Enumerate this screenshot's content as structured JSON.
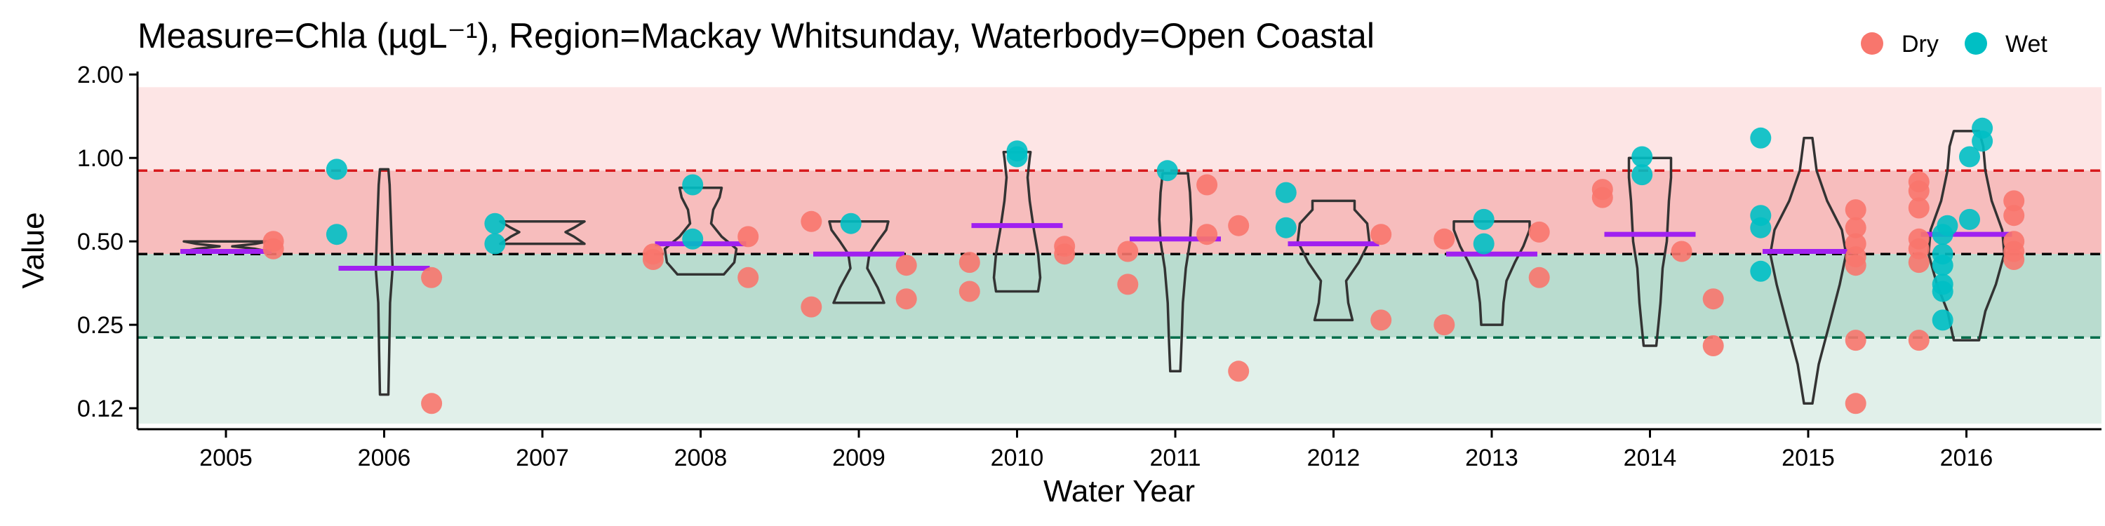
{
  "chart_data": {
    "type": "scatter",
    "title": "Measure=Chla (µgL⁻¹), Region=Mackay Whitsunday, Waterbody=Open Coastal",
    "xlabel": "Water Year",
    "ylabel": "Value",
    "y_scale": "log2",
    "ylim": [
      0.105,
      2.05
    ],
    "y_ticks": [
      {
        "value": 0.125,
        "label": "0.12"
      },
      {
        "value": 0.25,
        "label": "0.25"
      },
      {
        "value": 0.5,
        "label": "0.50"
      },
      {
        "value": 1.0,
        "label": "1.00"
      },
      {
        "value": 2.0,
        "label": "2.00"
      }
    ],
    "categories": [
      "2005",
      "2006",
      "2007",
      "2008",
      "2009",
      "2010",
      "2011",
      "2012",
      "2013",
      "2014",
      "2015",
      "2016"
    ],
    "grid": false,
    "legend_placement": "top-right",
    "legend": [
      {
        "name": "Dry",
        "color": "#f8766d"
      },
      {
        "name": "Wet",
        "color": "#00bfc4"
      }
    ],
    "reference_lines": [
      {
        "value": 0.9,
        "color": "#d7191c"
      },
      {
        "value": 0.45,
        "color": "#000000"
      },
      {
        "value": 0.225,
        "color": "#006d4b"
      }
    ],
    "bands": [
      {
        "from": 0.9,
        "to": 1.8,
        "color": "#fde5e5"
      },
      {
        "from": 0.45,
        "to": 0.9,
        "color": "#f7bdbd"
      },
      {
        "from": 0.225,
        "to": 0.45,
        "color": "#b9dccf"
      },
      {
        "from": 0.11,
        "to": 0.225,
        "color": "#e1f0ea"
      }
    ],
    "medians": [
      {
        "category": "2005",
        "value": 0.46
      },
      {
        "category": "2006",
        "value": 0.4
      },
      {
        "category": "2008",
        "value": 0.49
      },
      {
        "category": "2009",
        "value": 0.45
      },
      {
        "category": "2010",
        "value": 0.57
      },
      {
        "category": "2011",
        "value": 0.51
      },
      {
        "category": "2012",
        "value": 0.49
      },
      {
        "category": "2013",
        "value": 0.45
      },
      {
        "category": "2014",
        "value": 0.53
      },
      {
        "category": "2015",
        "value": 0.46
      },
      {
        "category": "2016",
        "value": 0.53
      }
    ],
    "violins": [
      {
        "category": "2005",
        "min": 0.46,
        "max": 0.5,
        "profile": [
          [
            0.46,
            1.0
          ],
          [
            0.47,
            0.7
          ],
          [
            0.48,
            0.15
          ],
          [
            0.49,
            0.7
          ],
          [
            0.5,
            1.0
          ]
        ]
      },
      {
        "category": "2006",
        "min": 0.14,
        "max": 0.91,
        "profile": [
          [
            0.14,
            0.1
          ],
          [
            0.2,
            0.12
          ],
          [
            0.3,
            0.14
          ],
          [
            0.4,
            0.2
          ],
          [
            0.6,
            0.16
          ],
          [
            0.8,
            0.13
          ],
          [
            0.91,
            0.1
          ]
        ]
      },
      {
        "category": "2007",
        "min": 0.49,
        "max": 0.59,
        "profile": [
          [
            0.49,
            1.0
          ],
          [
            0.52,
            0.75
          ],
          [
            0.54,
            0.55
          ],
          [
            0.56,
            0.75
          ],
          [
            0.59,
            1.0
          ]
        ]
      },
      {
        "category": "2008",
        "min": 0.38,
        "max": 0.78,
        "profile": [
          [
            0.38,
            0.55
          ],
          [
            0.42,
            0.8
          ],
          [
            0.47,
            0.85
          ],
          [
            0.52,
            0.5
          ],
          [
            0.58,
            0.25
          ],
          [
            0.65,
            0.3
          ],
          [
            0.72,
            0.45
          ],
          [
            0.78,
            0.5
          ]
        ]
      },
      {
        "category": "2009",
        "min": 0.3,
        "max": 0.59,
        "profile": [
          [
            0.3,
            0.6
          ],
          [
            0.34,
            0.45
          ],
          [
            0.4,
            0.2
          ],
          [
            0.45,
            0.25
          ],
          [
            0.5,
            0.45
          ],
          [
            0.55,
            0.65
          ],
          [
            0.59,
            0.7
          ]
        ]
      },
      {
        "category": "2010",
        "min": 0.33,
        "max": 1.05,
        "profile": [
          [
            0.33,
            0.5
          ],
          [
            0.37,
            0.55
          ],
          [
            0.45,
            0.5
          ],
          [
            0.55,
            0.4
          ],
          [
            0.7,
            0.3
          ],
          [
            0.85,
            0.25
          ],
          [
            1.0,
            0.3
          ],
          [
            1.05,
            0.32
          ]
        ]
      },
      {
        "category": "2011",
        "min": 0.17,
        "max": 0.88,
        "profile": [
          [
            0.17,
            0.12
          ],
          [
            0.22,
            0.15
          ],
          [
            0.3,
            0.18
          ],
          [
            0.4,
            0.25
          ],
          [
            0.5,
            0.35
          ],
          [
            0.6,
            0.38
          ],
          [
            0.75,
            0.35
          ],
          [
            0.88,
            0.3
          ]
        ]
      },
      {
        "category": "2012",
        "min": 0.26,
        "max": 0.7,
        "profile": [
          [
            0.26,
            0.45
          ],
          [
            0.3,
            0.35
          ],
          [
            0.36,
            0.3
          ],
          [
            0.42,
            0.6
          ],
          [
            0.5,
            0.85
          ],
          [
            0.58,
            0.8
          ],
          [
            0.65,
            0.5
          ],
          [
            0.7,
            0.5
          ]
        ]
      },
      {
        "category": "2013",
        "min": 0.25,
        "max": 0.59,
        "profile": [
          [
            0.25,
            0.25
          ],
          [
            0.3,
            0.28
          ],
          [
            0.36,
            0.35
          ],
          [
            0.42,
            0.55
          ],
          [
            0.48,
            0.75
          ],
          [
            0.55,
            0.9
          ],
          [
            0.59,
            0.9
          ]
        ]
      },
      {
        "category": "2014",
        "min": 0.21,
        "max": 1.0,
        "profile": [
          [
            0.21,
            0.15
          ],
          [
            0.25,
            0.2
          ],
          [
            0.3,
            0.25
          ],
          [
            0.4,
            0.3
          ],
          [
            0.5,
            0.4
          ],
          [
            0.7,
            0.45
          ],
          [
            0.85,
            0.5
          ],
          [
            1.0,
            0.5
          ]
        ]
      },
      {
        "category": "2015",
        "min": 0.13,
        "max": 1.18,
        "profile": [
          [
            0.13,
            0.1
          ],
          [
            0.18,
            0.25
          ],
          [
            0.25,
            0.5
          ],
          [
            0.35,
            0.75
          ],
          [
            0.45,
            0.9
          ],
          [
            0.55,
            0.8
          ],
          [
            0.7,
            0.45
          ],
          [
            0.9,
            0.2
          ],
          [
            1.18,
            0.1
          ]
        ]
      },
      {
        "category": "2016",
        "min": 0.22,
        "max": 1.25,
        "profile": [
          [
            0.22,
            0.3
          ],
          [
            0.28,
            0.45
          ],
          [
            0.35,
            0.7
          ],
          [
            0.45,
            0.9
          ],
          [
            0.55,
            0.85
          ],
          [
            0.7,
            0.6
          ],
          [
            0.9,
            0.45
          ],
          [
            1.1,
            0.4
          ],
          [
            1.25,
            0.3
          ]
        ]
      }
    ],
    "points": [
      {
        "category": "2005",
        "y": 0.5,
        "series": "Dry",
        "offset": 0.3
      },
      {
        "category": "2005",
        "y": 0.47,
        "series": "Dry",
        "offset": 0.3
      },
      {
        "category": "2006",
        "y": 0.91,
        "series": "Wet",
        "offset": -0.3
      },
      {
        "category": "2006",
        "y": 0.53,
        "series": "Wet",
        "offset": -0.3
      },
      {
        "category": "2006",
        "y": 0.37,
        "series": "Dry",
        "offset": 0.3
      },
      {
        "category": "2006",
        "y": 0.13,
        "series": "Dry",
        "offset": 0.3
      },
      {
        "category": "2007",
        "y": 0.58,
        "series": "Wet",
        "offset": -0.3
      },
      {
        "category": "2007",
        "y": 0.49,
        "series": "Wet",
        "offset": -0.3
      },
      {
        "category": "2008",
        "y": 0.43,
        "series": "Dry",
        "offset": -0.3
      },
      {
        "category": "2008",
        "y": 0.45,
        "series": "Dry",
        "offset": -0.3
      },
      {
        "category": "2008",
        "y": 0.8,
        "series": "Wet",
        "offset": -0.05
      },
      {
        "category": "2008",
        "y": 0.51,
        "series": "Wet",
        "offset": -0.05
      },
      {
        "category": "2008",
        "y": 0.52,
        "series": "Dry",
        "offset": 0.3
      },
      {
        "category": "2008",
        "y": 0.37,
        "series": "Dry",
        "offset": 0.3
      },
      {
        "category": "2009",
        "y": 0.59,
        "series": "Dry",
        "offset": -0.3
      },
      {
        "category": "2009",
        "y": 0.29,
        "series": "Dry",
        "offset": -0.3
      },
      {
        "category": "2009",
        "y": 0.58,
        "series": "Wet",
        "offset": -0.05
      },
      {
        "category": "2009",
        "y": 0.41,
        "series": "Dry",
        "offset": 0.3
      },
      {
        "category": "2009",
        "y": 0.31,
        "series": "Dry",
        "offset": 0.3
      },
      {
        "category": "2010",
        "y": 0.42,
        "series": "Dry",
        "offset": -0.3
      },
      {
        "category": "2010",
        "y": 0.33,
        "series": "Dry",
        "offset": -0.3
      },
      {
        "category": "2010",
        "y": 1.06,
        "series": "Wet",
        "offset": 0.0
      },
      {
        "category": "2010",
        "y": 1.01,
        "series": "Wet",
        "offset": 0.0
      },
      {
        "category": "2010",
        "y": 0.48,
        "series": "Dry",
        "offset": 0.3
      },
      {
        "category": "2010",
        "y": 0.45,
        "series": "Dry",
        "offset": 0.3
      },
      {
        "category": "2011",
        "y": 0.46,
        "series": "Dry",
        "offset": -0.3
      },
      {
        "category": "2011",
        "y": 0.35,
        "series": "Dry",
        "offset": -0.3
      },
      {
        "category": "2011",
        "y": 0.9,
        "series": "Wet",
        "offset": -0.05
      },
      {
        "category": "2011",
        "y": 0.8,
        "series": "Dry",
        "offset": 0.2
      },
      {
        "category": "2011",
        "y": 0.53,
        "series": "Dry",
        "offset": 0.2
      },
      {
        "category": "2011",
        "y": 0.57,
        "series": "Dry",
        "offset": 0.4
      },
      {
        "category": "2011",
        "y": 0.17,
        "series": "Dry",
        "offset": 0.4
      },
      {
        "category": "2012",
        "y": 0.75,
        "series": "Wet",
        "offset": -0.3
      },
      {
        "category": "2012",
        "y": 0.56,
        "series": "Wet",
        "offset": -0.3
      },
      {
        "category": "2012",
        "y": 0.53,
        "series": "Dry",
        "offset": 0.3
      },
      {
        "category": "2012",
        "y": 0.26,
        "series": "Dry",
        "offset": 0.3
      },
      {
        "category": "2013",
        "y": 0.51,
        "series": "Dry",
        "offset": -0.3
      },
      {
        "category": "2013",
        "y": 0.25,
        "series": "Dry",
        "offset": -0.3
      },
      {
        "category": "2013",
        "y": 0.6,
        "series": "Wet",
        "offset": -0.05
      },
      {
        "category": "2013",
        "y": 0.49,
        "series": "Wet",
        "offset": -0.05
      },
      {
        "category": "2013",
        "y": 0.54,
        "series": "Dry",
        "offset": 0.3
      },
      {
        "category": "2013",
        "y": 0.37,
        "series": "Dry",
        "offset": 0.3
      },
      {
        "category": "2014",
        "y": 0.77,
        "series": "Dry",
        "offset": -0.3
      },
      {
        "category": "2014",
        "y": 0.72,
        "series": "Dry",
        "offset": -0.3
      },
      {
        "category": "2014",
        "y": 1.01,
        "series": "Wet",
        "offset": -0.05
      },
      {
        "category": "2014",
        "y": 0.87,
        "series": "Wet",
        "offset": -0.05
      },
      {
        "category": "2014",
        "y": 0.46,
        "series": "Dry",
        "offset": 0.2
      },
      {
        "category": "2014",
        "y": 0.31,
        "series": "Dry",
        "offset": 0.4
      },
      {
        "category": "2014",
        "y": 0.21,
        "series": "Dry",
        "offset": 0.4
      },
      {
        "category": "2015",
        "y": 1.18,
        "series": "Wet",
        "offset": -0.3
      },
      {
        "category": "2015",
        "y": 0.62,
        "series": "Wet",
        "offset": -0.3
      },
      {
        "category": "2015",
        "y": 0.56,
        "series": "Wet",
        "offset": -0.3
      },
      {
        "category": "2015",
        "y": 0.39,
        "series": "Wet",
        "offset": -0.3
      },
      {
        "category": "2015",
        "y": 0.65,
        "series": "Dry",
        "offset": 0.3
      },
      {
        "category": "2015",
        "y": 0.56,
        "series": "Dry",
        "offset": 0.3
      },
      {
        "category": "2015",
        "y": 0.49,
        "series": "Dry",
        "offset": 0.3
      },
      {
        "category": "2015",
        "y": 0.44,
        "series": "Dry",
        "offset": 0.3
      },
      {
        "category": "2015",
        "y": 0.41,
        "series": "Dry",
        "offset": 0.3
      },
      {
        "category": "2015",
        "y": 0.22,
        "series": "Dry",
        "offset": 0.3
      },
      {
        "category": "2015",
        "y": 0.13,
        "series": "Dry",
        "offset": 0.3
      },
      {
        "category": "2016",
        "y": 0.82,
        "series": "Dry",
        "offset": -0.3
      },
      {
        "category": "2016",
        "y": 0.76,
        "series": "Dry",
        "offset": -0.3
      },
      {
        "category": "2016",
        "y": 0.66,
        "series": "Dry",
        "offset": -0.3
      },
      {
        "category": "2016",
        "y": 0.51,
        "series": "Dry",
        "offset": -0.3
      },
      {
        "category": "2016",
        "y": 0.47,
        "series": "Dry",
        "offset": -0.3
      },
      {
        "category": "2016",
        "y": 0.42,
        "series": "Dry",
        "offset": -0.3
      },
      {
        "category": "2016",
        "y": 0.22,
        "series": "Dry",
        "offset": -0.3
      },
      {
        "category": "2016",
        "y": 0.57,
        "series": "Wet",
        "offset": -0.12
      },
      {
        "category": "2016",
        "y": 0.53,
        "series": "Wet",
        "offset": -0.15
      },
      {
        "category": "2016",
        "y": 0.45,
        "series": "Wet",
        "offset": -0.15
      },
      {
        "category": "2016",
        "y": 0.41,
        "series": "Wet",
        "offset": -0.15
      },
      {
        "category": "2016",
        "y": 0.35,
        "series": "Wet",
        "offset": -0.15
      },
      {
        "category": "2016",
        "y": 0.33,
        "series": "Wet",
        "offset": -0.15
      },
      {
        "category": "2016",
        "y": 0.26,
        "series": "Wet",
        "offset": -0.15
      },
      {
        "category": "2016",
        "y": 1.28,
        "series": "Wet",
        "offset": 0.1
      },
      {
        "category": "2016",
        "y": 1.15,
        "series": "Wet",
        "offset": 0.1
      },
      {
        "category": "2016",
        "y": 1.01,
        "series": "Wet",
        "offset": 0.02
      },
      {
        "category": "2016",
        "y": 0.6,
        "series": "Wet",
        "offset": 0.02
      },
      {
        "category": "2016",
        "y": 0.7,
        "series": "Dry",
        "offset": 0.3
      },
      {
        "category": "2016",
        "y": 0.62,
        "series": "Dry",
        "offset": 0.3
      },
      {
        "category": "2016",
        "y": 0.5,
        "series": "Dry",
        "offset": 0.3
      },
      {
        "category": "2016",
        "y": 0.46,
        "series": "Dry",
        "offset": 0.3
      },
      {
        "category": "2016",
        "y": 0.43,
        "series": "Dry",
        "offset": 0.3
      }
    ]
  }
}
